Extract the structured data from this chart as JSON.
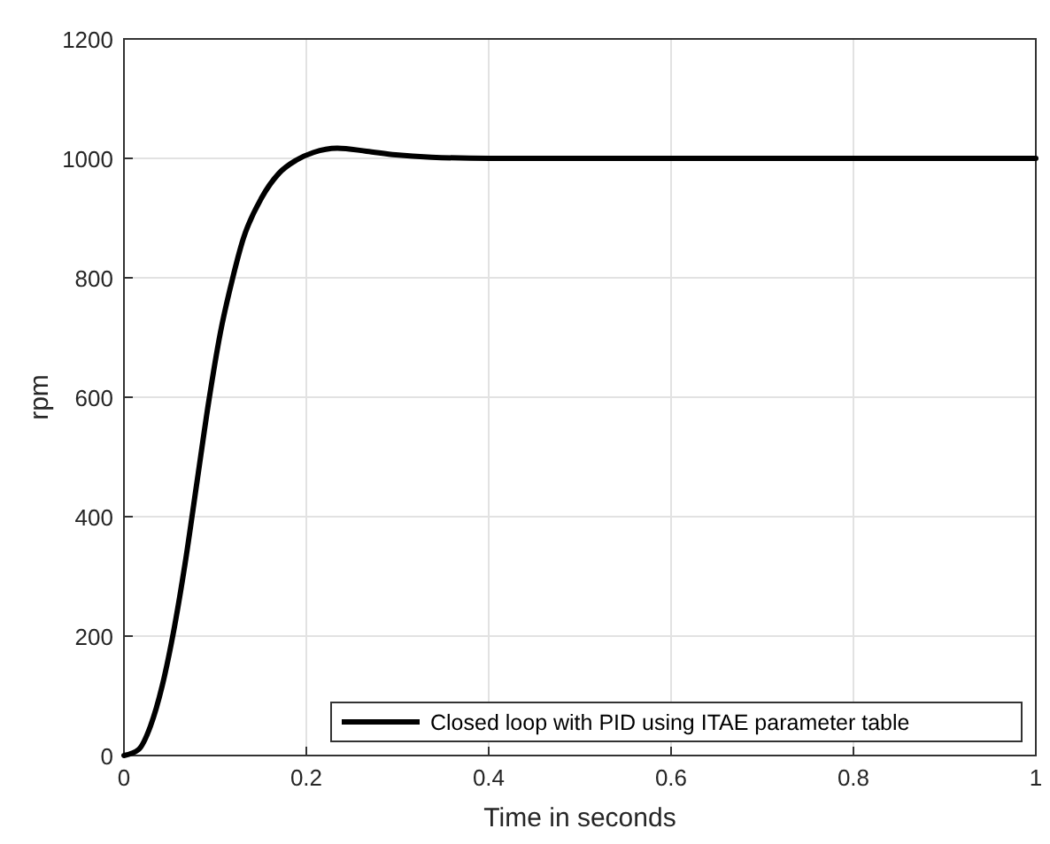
{
  "chart_data": {
    "type": "line",
    "xlabel": "Time in seconds",
    "ylabel": "rpm",
    "xlim": [
      0,
      1
    ],
    "ylim": [
      0,
      1200
    ],
    "xticks": [
      0,
      0.2,
      0.4,
      0.6,
      0.8,
      1
    ],
    "yticks": [
      0,
      200,
      400,
      600,
      800,
      1000,
      1200
    ],
    "grid": true,
    "legend": "bottom right",
    "line_style": "solid",
    "x": [
      0,
      0.016,
      0.029,
      0.042,
      0.054,
      0.067,
      0.08,
      0.093,
      0.106,
      0.119,
      0.131,
      0.151,
      0.17,
      0.189,
      0.208,
      0.234,
      0.266,
      0.298,
      0.337,
      0.401,
      0.5,
      0.6,
      0.7,
      0.8,
      0.9,
      1
    ],
    "series": [
      {
        "name": "Closed loop with PID using ITAE parameter table",
        "color": "#000000",
        "values": [
          0,
          10,
          49,
          117,
          204,
          321,
          457,
          593,
          710,
          798,
          866,
          934,
          975,
          997,
          1010,
          1017,
          1012,
          1006,
          1002,
          1000,
          1000,
          1000,
          1000,
          1000,
          1000,
          1000
        ]
      }
    ]
  }
}
